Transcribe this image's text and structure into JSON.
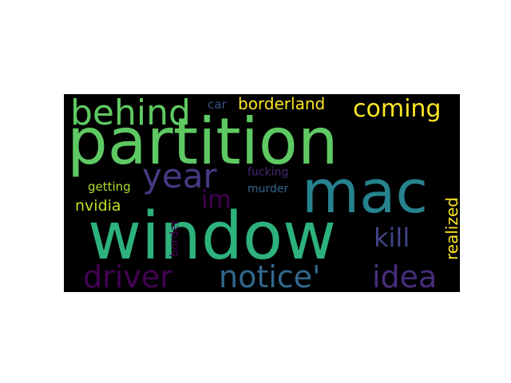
{
  "words": [
    {
      "key": "partition",
      "text": "partition",
      "color": "#5ec962"
    },
    {
      "key": "window",
      "text": "window",
      "color": "#2db27d"
    },
    {
      "key": "mac",
      "text": "mac",
      "color": "#26828e"
    },
    {
      "key": "behind",
      "text": "behind",
      "color": "#5ec962"
    },
    {
      "key": "year",
      "text": "year",
      "color": "#443a83"
    },
    {
      "key": "coming",
      "text": "coming",
      "color": "#fde725"
    },
    {
      "key": "borderland",
      "text": "borderland",
      "color": "#fde725"
    },
    {
      "key": "car",
      "text": "car",
      "color": "#3b528b"
    },
    {
      "key": "fucking",
      "text": "fucking",
      "color": "#482878"
    },
    {
      "key": "murder",
      "text": "murder",
      "color": "#31688e"
    },
    {
      "key": "getting",
      "text": "getting",
      "color": "#addc30"
    },
    {
      "key": "im",
      "text": "im",
      "color": "#440154"
    },
    {
      "key": "nvidia",
      "text": "nvidia",
      "color": "#c2df23"
    },
    {
      "key": "kill",
      "text": "kill",
      "color": "#414487"
    },
    {
      "key": "realized",
      "text": "realized",
      "color": "#fde725"
    },
    {
      "key": "border",
      "text": "border",
      "color": "#440154"
    },
    {
      "key": "driver",
      "text": "driver",
      "color": "#440154"
    },
    {
      "key": "notice",
      "text": "notice'",
      "color": "#31688e"
    },
    {
      "key": "idea",
      "text": "idea",
      "color": "#472d7b"
    }
  ]
}
